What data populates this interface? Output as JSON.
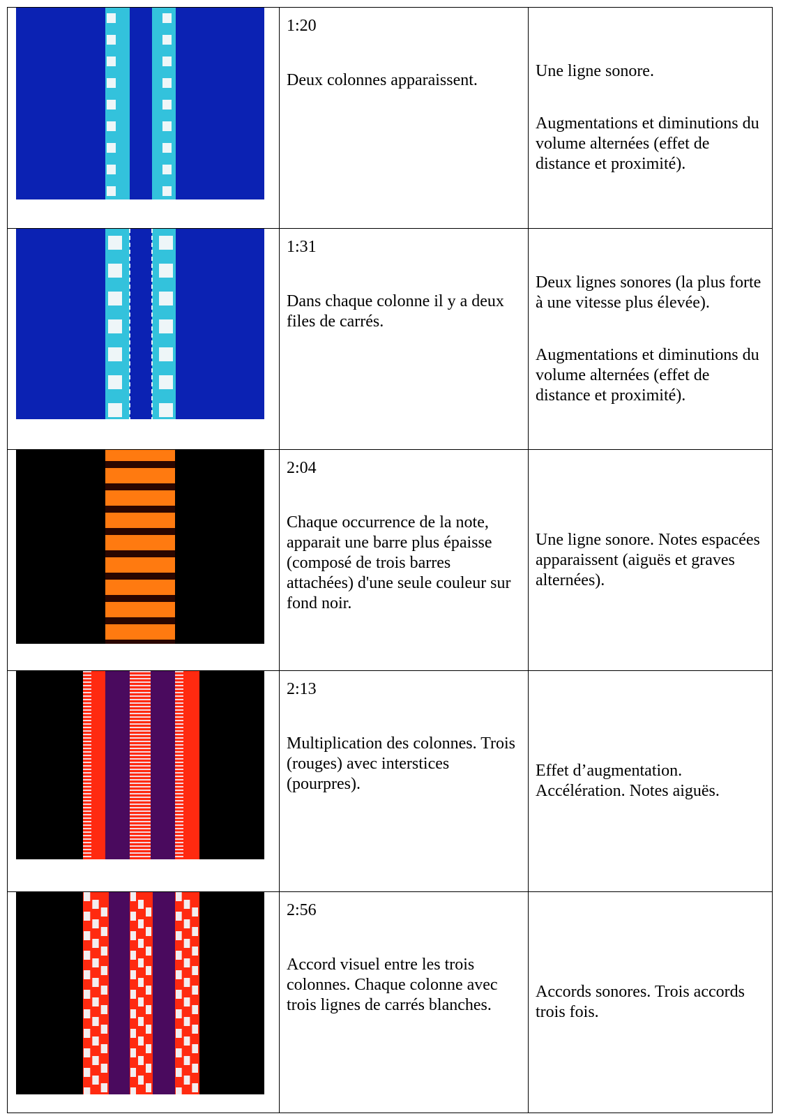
{
  "table": {
    "rows": [
      {
        "time": "1:20",
        "description": "Deux colonnes apparaissent.",
        "sound": [
          "Une ligne sonore.",
          "Augmentations et diminutions du volume alternées (effet de distance et proximité)."
        ]
      },
      {
        "time": "1:31",
        "description": "Dans chaque colonne il y a deux files de carrés.",
        "sound": [
          "Deux lignes sonores (la plus forte à une vitesse plus élevée).",
          "Augmentations et diminutions du volume alternées (effet de distance et proximité)."
        ]
      },
      {
        "time": "2:04",
        "description": "Chaque occurrence de la note, apparait une barre plus épaisse (composé de trois barres attachées) d'une seule couleur sur fond noir.",
        "sound": [
          "Une ligne sonore. Notes espacées apparaissent (aiguës et graves alternées)."
        ]
      },
      {
        "time": "2:13",
        "description": "Multiplication des colonnes. Trois (rouges) avec interstices (pourpres).",
        "sound": [
          "Effet d’augmentation. Accélération. Notes aiguës."
        ]
      },
      {
        "time": "2:56",
        "description": "Accord visuel entre les trois  colonnes. Chaque colonne avec trois lignes de carrés blanches.",
        "sound": [
          "Accords sonores. Trois accords trois fois."
        ]
      }
    ]
  }
}
